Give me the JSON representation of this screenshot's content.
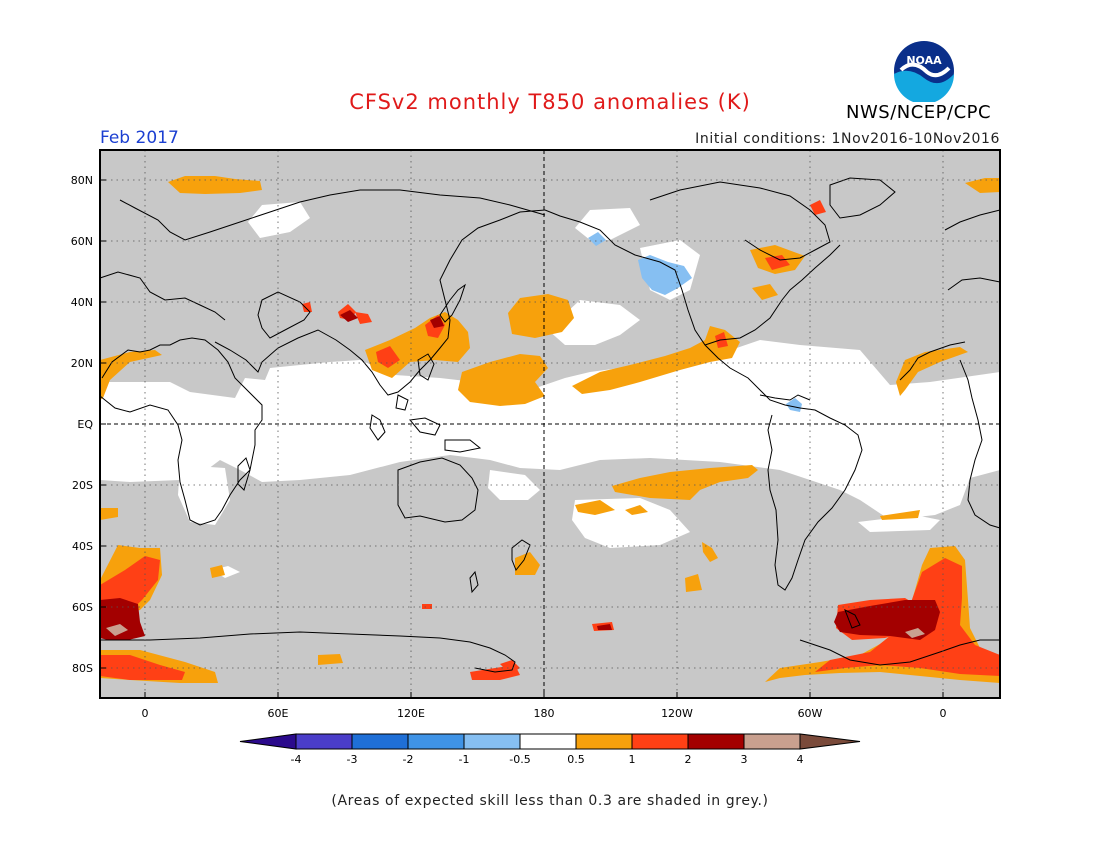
{
  "title": "CFSv2 monthly T850 anomalies (K)",
  "organization": "NWS/NCEP/CPC",
  "logo": {
    "text": "NOAA",
    "colors": [
      "#0a2f8a",
      "#14a8e0",
      "#ffffff"
    ]
  },
  "forecast_month": "Feb 2017",
  "initial_conditions": "Initial conditions: 1Nov2016-10Nov2016",
  "footnote": "(Areas of expected skill less than 0.3 are shaded in grey.)",
  "map": {
    "projection": "cylindrical equidistant, centered on 180",
    "lon_range": [
      -20,
      380
    ],
    "lat_range": [
      -90,
      90
    ],
    "lat_labels": [
      "80N",
      "60N",
      "40N",
      "20N",
      "EQ",
      "20S",
      "40S",
      "60S",
      "80S"
    ],
    "lon_labels": [
      "0",
      "60E",
      "120E",
      "180",
      "120W",
      "60W",
      "0"
    ],
    "low_skill_color": "#c8c8c8",
    "gridlines": "dotted, every 30 degrees longitude and 20 degrees latitude"
  },
  "colorbar": {
    "labels": [
      "-4",
      "-3",
      "-2",
      "-1",
      "-0.5",
      "0.5",
      "1",
      "2",
      "3",
      "4"
    ],
    "colors": [
      "#2b0a8c",
      "#4a3dc9",
      "#1f6fd6",
      "#3f93e6",
      "#86bff2",
      "#ffffff",
      "#f7a10c",
      "#ff4015",
      "#a30000",
      "#c9a08f",
      "#7a4a3a"
    ]
  },
  "colors": {
    "grey": "#c8c8c8",
    "white": "#ffffff",
    "orange": "#f7a10c",
    "red": "#ff4015",
    "darkred": "#a30000",
    "lightblue": "#86bff2",
    "coast": "#000000"
  }
}
